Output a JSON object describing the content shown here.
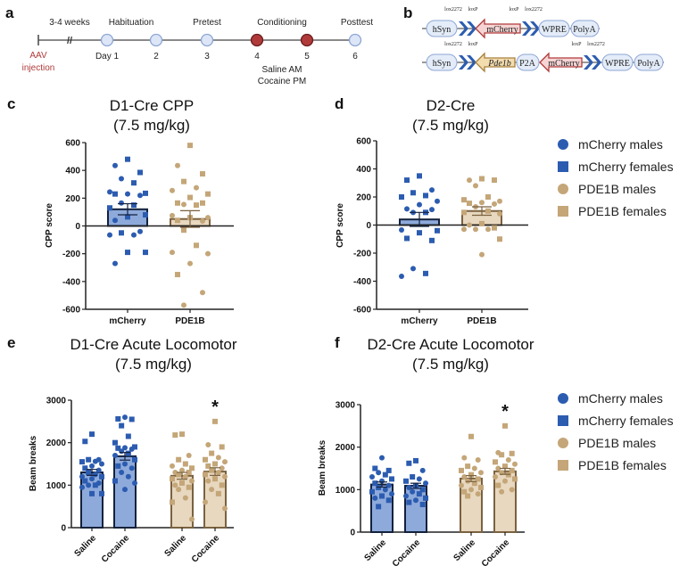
{
  "panels": {
    "a": "a",
    "b": "b",
    "c": "c",
    "d": "d",
    "e": "e",
    "f": "f"
  },
  "timeline": {
    "gap_label": "3-4 weeks",
    "injection": [
      "AAV",
      "injection"
    ],
    "phases": [
      "Habituation",
      "Pretest",
      "Conditioning",
      "Posttest"
    ],
    "days": [
      "Day 1",
      "2",
      "3",
      "4",
      "5",
      "6"
    ],
    "conditioning_note": [
      "Saline AM",
      "Cocaine PM"
    ],
    "colors": {
      "normal": "#dce6f7",
      "conditioning": "#b03a3a",
      "injection": "#b03a3a"
    }
  },
  "constructs": {
    "row1": {
      "promoter": "hSyn",
      "sites_left": [
        "lox2272",
        "loxP"
      ],
      "gene": "mCherry",
      "sites_right": [
        "loxP",
        "lox2272"
      ],
      "elements": [
        "WPRE",
        "PolyA"
      ]
    },
    "row2": {
      "promoter": "hSyn",
      "sites_left": [
        "lox2272",
        "loxP"
      ],
      "gene1": "Pde1b",
      "linker": "P2A",
      "gene2": "mCherry",
      "sites_right": [
        "loxP",
        "lox2272"
      ],
      "elements": [
        "WPRE",
        "PolyA"
      ]
    }
  },
  "legend": {
    "items": [
      {
        "label": "mCherry males",
        "shape": "circle",
        "color": "#2c5cb0"
      },
      {
        "label": "mCherry females",
        "shape": "square",
        "color": "#2c5cb0"
      },
      {
        "label": "PDE1B males",
        "shape": "circle",
        "color": "#c4a678"
      },
      {
        "label": "PDE1B females",
        "shape": "square",
        "color": "#c4a678"
      }
    ]
  },
  "chart_data": [
    {
      "id": "c",
      "type": "bar",
      "title": "D1-Cre CPP",
      "subtitle": "(7.5 mg/kg)",
      "ylabel": "CPP score",
      "xlabel": "",
      "ylim": [
        -600,
        600
      ],
      "yticks": [
        "600",
        "400",
        "200",
        "0",
        "-200",
        "-400",
        "-600"
      ],
      "categories": [
        "mCherry",
        "PDE1B"
      ],
      "groups": [
        {
          "name": "mCherry",
          "mean": 120,
          "sem": 40,
          "color": "mcherry",
          "males": [
            435,
            340,
            245,
            230,
            220,
            165,
            40,
            -40,
            -65,
            -65,
            -270
          ],
          "females": [
            480,
            385,
            310,
            235,
            230,
            150,
            130,
            80,
            65,
            -50,
            -190,
            -190
          ]
        },
        {
          "name": "PDE1B",
          "mean": 50,
          "sem": 60,
          "color": "pde1b",
          "males": [
            435,
            275,
            255,
            155,
            75,
            60,
            35,
            -190,
            -200,
            -270,
            -480,
            -570
          ],
          "females": [
            580,
            375,
            320,
            230,
            205,
            165,
            165,
            150,
            60,
            40,
            -30,
            -140,
            -350
          ]
        }
      ]
    },
    {
      "id": "d",
      "type": "bar",
      "title": "D2-Cre",
      "subtitle": "(7.5 mg/kg)",
      "ylabel": "CPP score",
      "xlabel": "",
      "ylim": [
        -600,
        600
      ],
      "yticks": [
        "600",
        "400",
        "200",
        "0",
        "-200",
        "-400",
        "-600"
      ],
      "categories": [
        "mCherry",
        "PDE1B"
      ],
      "groups": [
        {
          "name": "mCherry",
          "mean": 40,
          "sem": 50,
          "color": "mcherry",
          "males": [
            250,
            170,
            145,
            115,
            110,
            90,
            -35,
            -310,
            -365
          ],
          "females": [
            350,
            320,
            230,
            210,
            200,
            90,
            -40,
            -55,
            -95,
            -110,
            -345
          ]
        },
        {
          "name": "PDE1B",
          "mean": 100,
          "sem": 30,
          "color": "pde1b",
          "males": [
            320,
            280,
            170,
            160,
            150,
            130,
            80,
            0,
            -30,
            -30,
            -30,
            -210
          ],
          "females": [
            330,
            320,
            200,
            180,
            155,
            100,
            90,
            10,
            -20,
            -100
          ]
        }
      ]
    },
    {
      "id": "e",
      "type": "bar",
      "title": "D1-Cre Acute Locomotor",
      "subtitle": "(7.5 mg/kg)",
      "ylabel": "Beam breaks",
      "xlabel": "",
      "ylim": [
        0,
        3000
      ],
      "yticks": [
        "3000",
        "2000",
        "1000",
        "0"
      ],
      "categories": [
        "Saline",
        "Cocaine",
        "Saline",
        "Cocaine"
      ],
      "groups": [
        {
          "name": "mCherry Saline",
          "mean": 1300,
          "sem": 70,
          "color": "mcherry",
          "males": [
            1560,
            1500,
            1450,
            1350,
            1250,
            1150,
            1050,
            950,
            1200,
            1000,
            1600
          ],
          "females": [
            2200,
            2030,
            1600,
            1550,
            1400,
            1300,
            1200,
            1100,
            1000,
            800,
            800
          ]
        },
        {
          "name": "mCherry Cocaine",
          "mean": 1680,
          "sem": 90,
          "color": "mcherry",
          "males": [
            2600,
            1880,
            1800,
            1700,
            1500,
            1400,
            1200,
            1050,
            900,
            1850,
            1300
          ],
          "females": [
            2550,
            2560,
            2400,
            2150,
            2000,
            1900,
            1870,
            1750,
            1600,
            1450,
            1100
          ]
        },
        {
          "name": "PDE1B Saline",
          "mean": 1220,
          "sem": 80,
          "color": "pde1b",
          "males": [
            1700,
            1450,
            1300,
            1200,
            1100,
            1000,
            900,
            700,
            200,
            1350
          ],
          "females": [
            2200,
            2180,
            1600,
            1500,
            1400,
            1300,
            1250,
            1150,
            1050,
            950,
            600
          ]
        },
        {
          "name": "PDE1B Cocaine",
          "mean": 1320,
          "sem": 90,
          "color": "pde1b",
          "males": [
            1950,
            1650,
            1550,
            1400,
            1300,
            1200,
            1100,
            900,
            600,
            450
          ],
          "females": [
            2500,
            1900,
            1750,
            1600,
            1500,
            1450,
            1350,
            1250,
            1150,
            1000,
            800
          ]
        }
      ],
      "annotations": [
        {
          "group": 3,
          "text": "*"
        }
      ]
    },
    {
      "id": "f",
      "type": "bar",
      "title": "D2-Cre Acute Locomotor",
      "subtitle": "(7.5 mg/kg)",
      "ylabel": "Beam breaks",
      "xlabel": "",
      "ylim": [
        0,
        3000
      ],
      "yticks": [
        "3000",
        "2000",
        "1000",
        "0"
      ],
      "categories": [
        "Saline",
        "Cocaine",
        "Saline",
        "Cocaine"
      ],
      "groups": [
        {
          "name": "mCherry Saline",
          "mean": 1120,
          "sem": 60,
          "color": "mcherry",
          "males": [
            1750,
            1400,
            1300,
            1200,
            1100,
            1000,
            900,
            800
          ],
          "females": [
            1500,
            1450,
            1350,
            1250,
            1150,
            1050,
            950,
            850,
            750,
            600
          ]
        },
        {
          "name": "mCherry Cocaine",
          "mean": 1090,
          "sem": 60,
          "color": "mcherry",
          "males": [
            1450,
            1250,
            1150,
            1050,
            950,
            850,
            750
          ],
          "females": [
            1680,
            1620,
            1300,
            1200,
            1100,
            1000,
            900,
            800,
            700,
            650
          ]
        },
        {
          "name": "PDE1B Saline",
          "mean": 1260,
          "sem": 70,
          "color": "pde1b",
          "males": [
            1750,
            1700,
            1500,
            1400,
            1300,
            1200,
            1100,
            1000,
            900
          ],
          "females": [
            2250,
            1550,
            1450,
            1350,
            1250,
            1150,
            1050,
            950,
            850
          ]
        },
        {
          "name": "PDE1B Cocaine",
          "mean": 1430,
          "sem": 70,
          "color": "pde1b",
          "males": [
            1870,
            1700,
            1600,
            1500,
            1400,
            1300,
            1200,
            1000,
            950
          ],
          "females": [
            2500,
            1850,
            1820,
            1650,
            1550,
            1450,
            1350,
            1250,
            1100
          ]
        }
      ],
      "annotations": [
        {
          "group": 3,
          "text": "*"
        }
      ]
    }
  ]
}
